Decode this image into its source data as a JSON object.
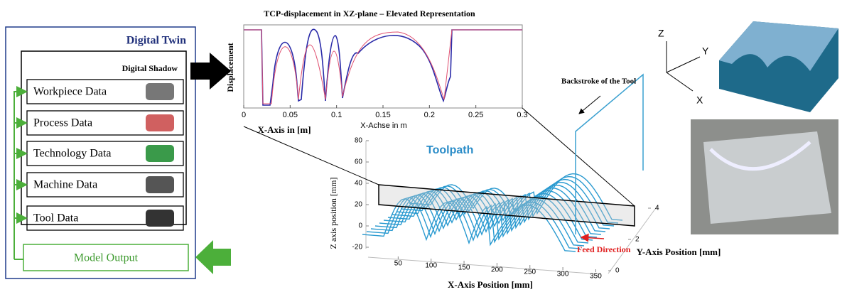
{
  "digital_twin": {
    "title": "Digital Twin",
    "shadow_title": "Digital Shadow",
    "items": [
      "Workpiece Data",
      "Process Data",
      "Technology Data",
      "Machine Data",
      "Tool Data"
    ],
    "output": "Model Output"
  },
  "displacement_plot": {
    "title": "TCP-displacement in XZ-plane – Elevated Representation",
    "y_label": "Displacement",
    "x_label": "X-Axis in [m]",
    "x_label_alt": "X-Achse in m",
    "xticks": [
      0,
      0.05,
      0.1,
      0.15,
      0.2,
      0.25,
      0.3
    ]
  },
  "toolpath_plot": {
    "z_label": "Z axis position  [mm]",
    "x_label": "X-Axis Position  [mm]",
    "y_label": "Y-Axis Position [mm]",
    "zticks": [
      -20,
      0,
      20,
      40,
      60,
      80
    ],
    "xticks": [
      50,
      100,
      150,
      200,
      250,
      300,
      350
    ],
    "yticks": [
      0,
      2,
      4
    ],
    "toolpath_label": "Toolpath",
    "feed_label": "Feed Direction",
    "backstroke_label": "Backstroke of the Tool"
  },
  "axes_triad": {
    "z": "Z",
    "y": "Y",
    "x": "X"
  }
}
